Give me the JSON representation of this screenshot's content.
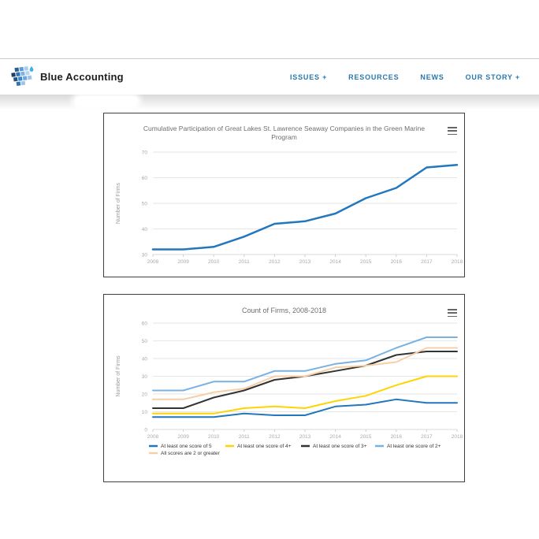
{
  "header": {
    "logo_text": "Blue Accounting",
    "nav_items": [
      {
        "label": "ISSUES +"
      },
      {
        "label": "RESOURCES"
      },
      {
        "label": "NEWS"
      },
      {
        "label": "OUR STORY +"
      }
    ],
    "nav_color": "#2878ae"
  },
  "icons": {
    "logo": "blue-mosaic-droplet-icon",
    "chart_menu": "hamburger-menu-icon"
  },
  "colors": {
    "nav_link": "#2878ae",
    "chart_title": "#6e6e6e",
    "axis_label": "#a9a9a9",
    "gridline": "#e6e6e6",
    "card_border": "#3f3f3f",
    "series_blue": "#2277bd",
    "series_yellow": "#ffd404",
    "series_black": "#333333",
    "series_lightblue": "#78b2e2",
    "series_peach": "#f7cfa6"
  },
  "chart_data": [
    {
      "type": "line",
      "title": "Cumulative Participation of Great Lakes St. Lawrence Seaway Companies in the Green Marine Program",
      "ylabel": "Number of Firms",
      "categories": [
        "2008",
        "2009",
        "2010",
        "2011",
        "2012",
        "2013",
        "2014",
        "2015",
        "2016",
        "2017",
        "2018"
      ],
      "ylim": [
        30,
        70
      ],
      "yticks": [
        30,
        40,
        50,
        60,
        70
      ],
      "grid": true,
      "legend": false,
      "series": [
        {
          "name": "Firms",
          "color": "#2277bd",
          "width": 2.5,
          "values": [
            32,
            32,
            33,
            37,
            42,
            43,
            46,
            52,
            56,
            64,
            65
          ]
        }
      ]
    },
    {
      "type": "line",
      "title": "Count of Firms, 2008-2018",
      "ylabel": "Number of Firms",
      "categories": [
        "2008",
        "2009",
        "2010",
        "2011",
        "2012",
        "2013",
        "2014",
        "2015",
        "2016",
        "2017",
        "2018"
      ],
      "ylim": [
        0,
        60
      ],
      "yticks": [
        0,
        10,
        20,
        30,
        40,
        50,
        60
      ],
      "grid": true,
      "legend": true,
      "legend_position": "bottom",
      "series": [
        {
          "name": "At least one score of 5",
          "color": "#2277bd",
          "width": 2,
          "values": [
            7,
            7,
            7,
            9,
            8,
            8,
            13,
            14,
            17,
            15,
            15
          ]
        },
        {
          "name": "At least one score of 4+",
          "color": "#ffd404",
          "width": 2,
          "values": [
            9,
            9,
            9,
            12,
            13,
            12,
            16,
            19,
            25,
            30,
            30
          ]
        },
        {
          "name": "At least one score of 3+",
          "color": "#333333",
          "width": 2,
          "values": [
            12,
            12,
            18,
            22,
            28,
            30,
            33,
            36,
            42,
            44,
            44
          ]
        },
        {
          "name": "At least one score of 2+",
          "color": "#78b2e2",
          "width": 2,
          "values": [
            22,
            22,
            27,
            27,
            33,
            33,
            37,
            39,
            46,
            52,
            52
          ]
        },
        {
          "name": "All scores are 2 or greater",
          "color": "#f7cfa6",
          "width": 2,
          "values": [
            17,
            17,
            21,
            23,
            30,
            30,
            35,
            36,
            38,
            46,
            46
          ]
        }
      ]
    }
  ]
}
